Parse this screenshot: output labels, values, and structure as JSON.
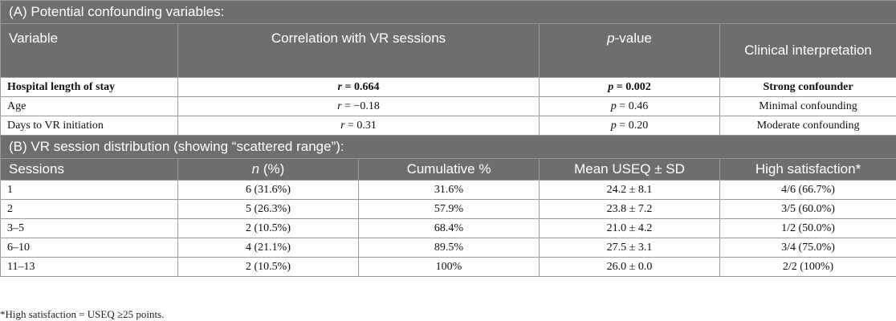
{
  "sectionA": {
    "title": "(A) Potential confounding variables:",
    "headers": {
      "variable": "Variable",
      "correlation": "Correlation with VR sessions",
      "p_italic": "p",
      "p_rest": "-value",
      "interpretation": "Clinical interpretation"
    },
    "rows": [
      {
        "variable": "Hospital length of stay",
        "r_label": "r",
        "r_value": " = 0.664",
        "p_label": "p",
        "p_value": " = 0.002",
        "interpretation": "Strong confounder"
      },
      {
        "variable": "Age",
        "r_label": "r",
        "r_value": " = −0.18",
        "p_label": "p",
        "p_value": " = 0.46",
        "interpretation": "Minimal confounding"
      },
      {
        "variable": "Days to VR initiation",
        "r_label": "r",
        "r_value": " = 0.31",
        "p_label": "p",
        "p_value": " = 0.20",
        "interpretation": "Moderate confounding"
      }
    ]
  },
  "sectionB": {
    "title": "(B) VR session distribution (showing “scattered range”):",
    "headers": {
      "sessions": "Sessions",
      "n_italic": "n",
      "n_rest": " (%)",
      "cumulative": "Cumulative %",
      "mean": "Mean USEQ ± SD",
      "high": "High satisfaction*"
    },
    "rows": [
      {
        "sessions": "1",
        "n": "6 (31.6%)",
        "cumulative": "31.6%",
        "mean": "24.2 ± 8.1",
        "high": "4/6 (66.7%)"
      },
      {
        "sessions": "2",
        "n": "5 (26.3%)",
        "cumulative": "57.9%",
        "mean": "23.8 ± 7.2",
        "high": "3/5 (60.0%)"
      },
      {
        "sessions": "3–5",
        "n": "2 (10.5%)",
        "cumulative": "68.4%",
        "mean": "21.0 ± 4.2",
        "high": "1/2 (50.0%)"
      },
      {
        "sessions": "6–10",
        "n": "4 (21.1%)",
        "cumulative": "89.5%",
        "mean": "27.5 ± 3.1",
        "high": "3/4 (75.0%)"
      },
      {
        "sessions": "11–13",
        "n": "2 (10.5%)",
        "cumulative": "100%",
        "mean": "26.0 ± 0.0",
        "high": "2/2 (100%)"
      }
    ]
  },
  "footnote": "*High satisfaction = USEQ ≥25 points."
}
